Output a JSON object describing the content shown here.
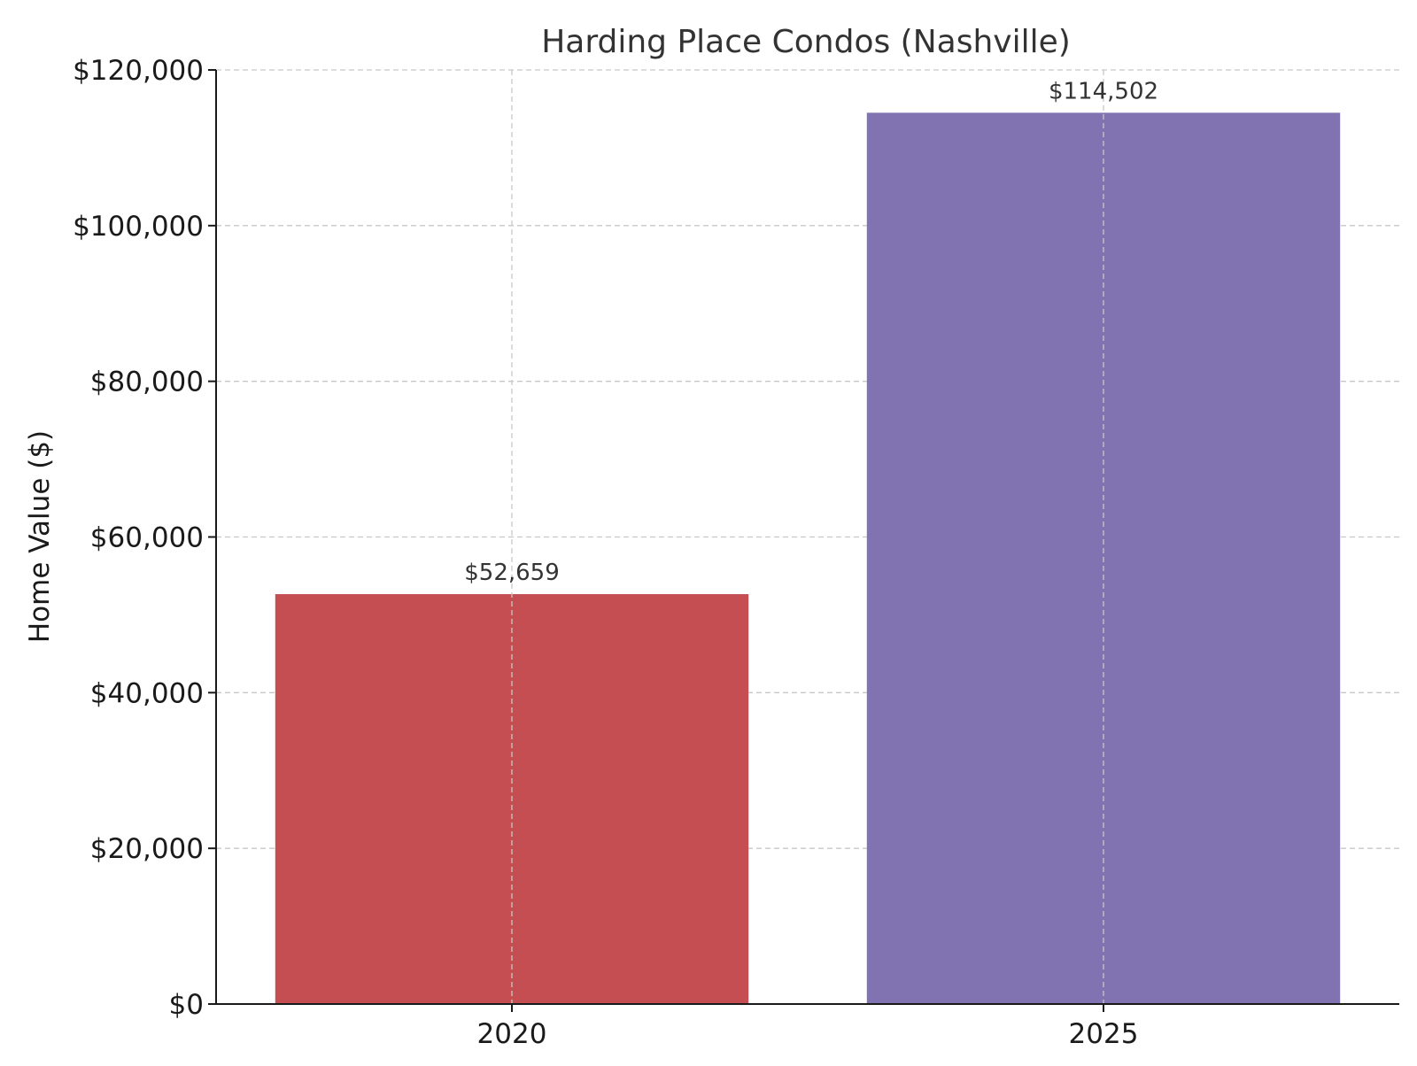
{
  "chart_data": {
    "type": "bar",
    "title": "Harding Place Condos (Nashville)",
    "xlabel": "",
    "ylabel": "Home Value ($)",
    "categories": [
      "2020",
      "2025"
    ],
    "values": [
      52659,
      114502
    ],
    "value_labels": [
      "$52,659",
      "$114,502"
    ],
    "bar_colors": [
      "#c44e52",
      "#8172b2"
    ],
    "ylim": [
      0,
      120000
    ],
    "yticks": [
      0,
      20000,
      40000,
      60000,
      80000,
      100000,
      120000
    ],
    "ytick_labels": [
      "$0",
      "$20,000",
      "$40,000",
      "$60,000",
      "$80,000",
      "$100,000",
      "$120,000"
    ],
    "grid": true,
    "legend": "none"
  }
}
